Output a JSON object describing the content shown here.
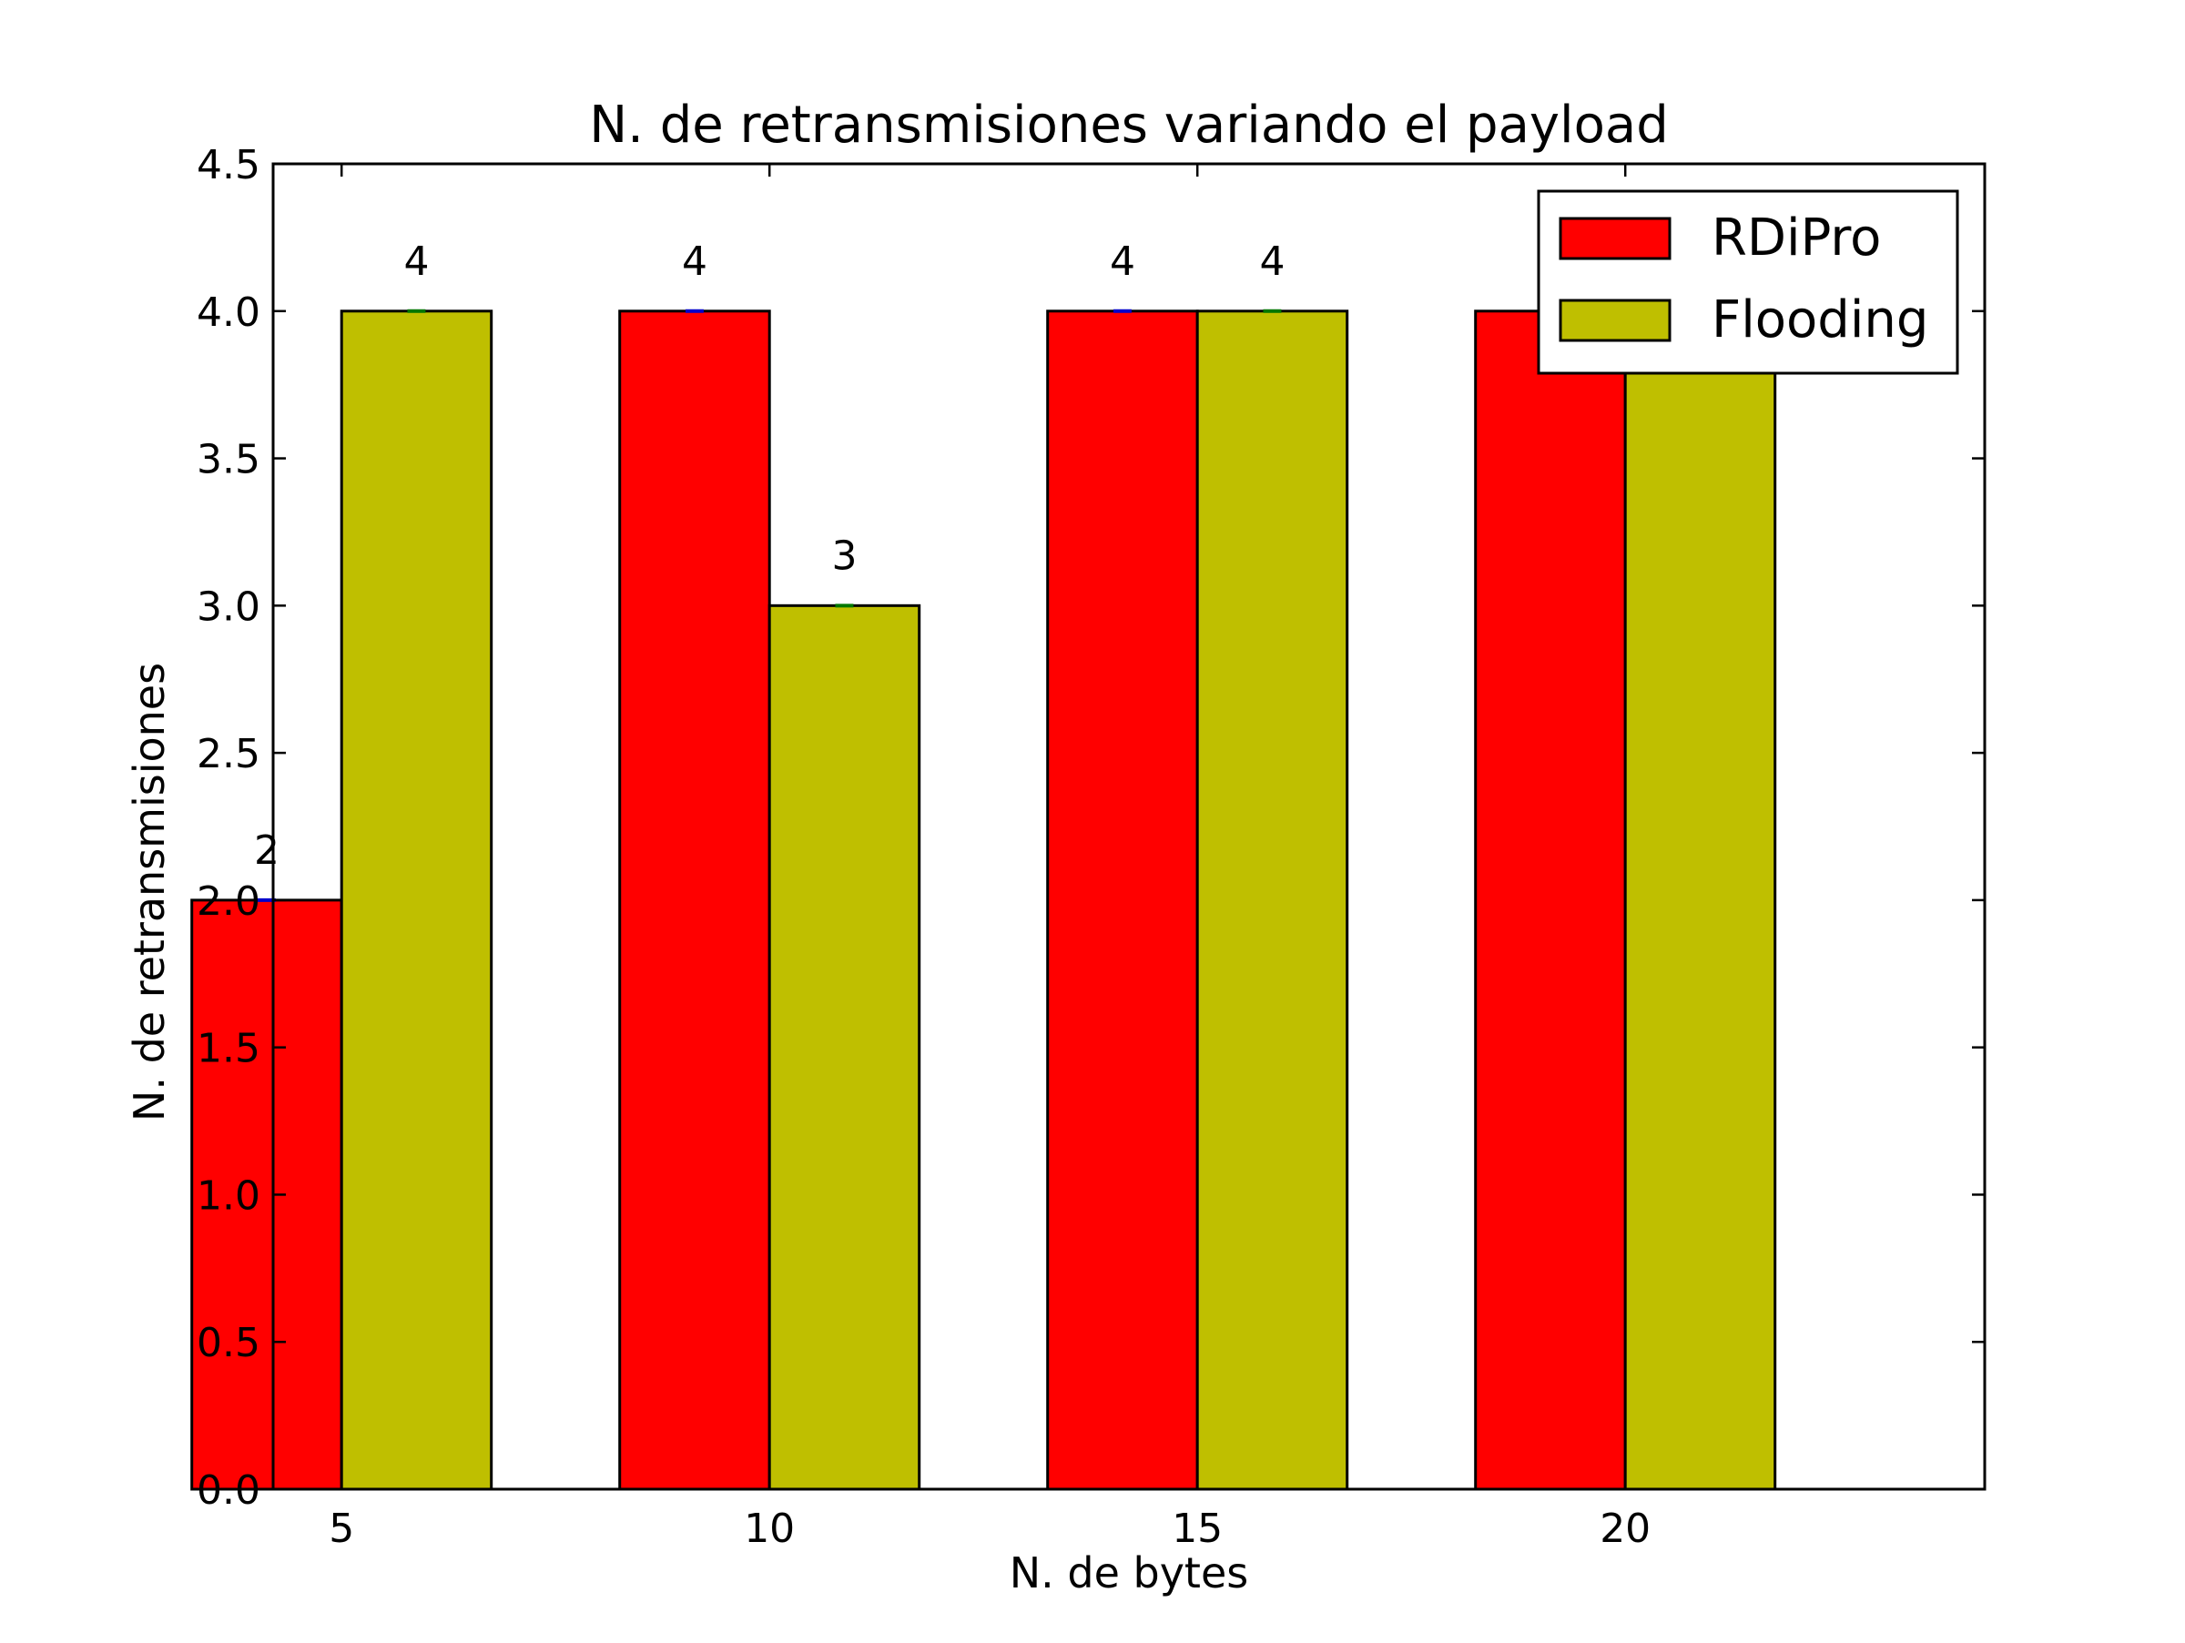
{
  "chart_data": {
    "type": "bar",
    "title": "N. de retransmisiones variando el payload",
    "xlabel": "N. de bytes",
    "ylabel": "N. de retransmisiones",
    "categories": [
      "5",
      "10",
      "15",
      "20"
    ],
    "x": [
      5,
      10,
      15,
      20
    ],
    "xlim": [
      4.2,
      24.2
    ],
    "ylim": [
      0,
      4.5
    ],
    "yticks": [
      "0.0",
      "0.5",
      "1.0",
      "1.5",
      "2.0",
      "2.5",
      "3.0",
      "3.5",
      "4.0",
      "4.5"
    ],
    "grid": false,
    "legend_position": "top-right",
    "series": [
      {
        "name": "RDiPro",
        "color": "#ff0000",
        "error_color": "#0000cc",
        "values": [
          2,
          4,
          4,
          4
        ],
        "labels": [
          "2",
          "4",
          "4",
          ""
        ]
      },
      {
        "name": "Flooding",
        "color": "#bfbf00",
        "error_color": "#007700",
        "values": [
          4,
          3,
          4,
          4
        ],
        "labels": [
          "4",
          "3",
          "4",
          ""
        ]
      }
    ]
  }
}
